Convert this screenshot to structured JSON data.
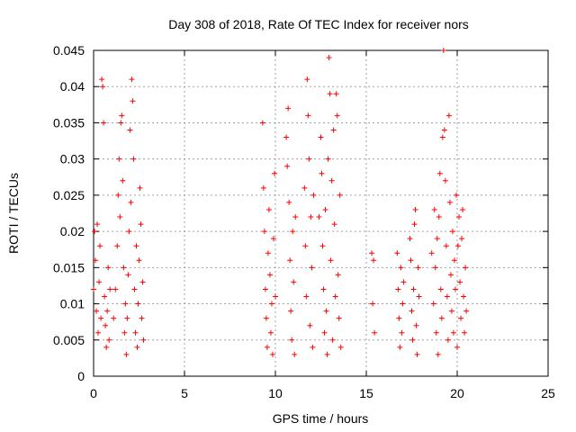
{
  "chart_data": {
    "type": "scatter",
    "title": "Day 308 of 2018, Rate Of TEC Index for receiver nors",
    "xlabel": "GPS time / hours",
    "ylabel": "ROTI / TECUs",
    "xlim": [
      0,
      25
    ],
    "ylim": [
      0,
      0.045
    ],
    "xticks": [
      0,
      5,
      10,
      15,
      20,
      25
    ],
    "yticks": [
      0,
      0.005,
      0.01,
      0.015,
      0.02,
      0.025,
      0.03,
      0.035,
      0.04,
      0.045
    ],
    "xtick_labels": [
      "0",
      "5",
      "10",
      "15",
      "20",
      "25"
    ],
    "ytick_labels": [
      "0",
      "0.005",
      "0.01",
      "0.015",
      "0.02",
      "0.025",
      "0.03",
      "0.035",
      "0.04",
      "0.045"
    ],
    "grid": true,
    "marker": "+",
    "color": "#ff0000",
    "series": [
      {
        "name": "ROTI",
        "points": [
          [
            0.0,
            0.012
          ],
          [
            0.05,
            0.02
          ],
          [
            0.1,
            0.016
          ],
          [
            0.15,
            0.009
          ],
          [
            0.2,
            0.021
          ],
          [
            0.25,
            0.006
          ],
          [
            0.3,
            0.013
          ],
          [
            0.35,
            0.018
          ],
          [
            0.4,
            0.008
          ],
          [
            0.45,
            0.041
          ],
          [
            0.5,
            0.04
          ],
          [
            0.55,
            0.035
          ],
          [
            0.6,
            0.011
          ],
          [
            0.65,
            0.007
          ],
          [
            0.7,
            0.004
          ],
          [
            0.75,
            0.009
          ],
          [
            0.8,
            0.015
          ],
          [
            0.85,
            0.005
          ],
          [
            0.9,
            0.012
          ],
          [
            1.1,
            0.008
          ],
          [
            1.2,
            0.012
          ],
          [
            1.3,
            0.018
          ],
          [
            1.35,
            0.025
          ],
          [
            1.4,
            0.03
          ],
          [
            1.45,
            0.022
          ],
          [
            1.5,
            0.035
          ],
          [
            1.55,
            0.036
          ],
          [
            1.6,
            0.027
          ],
          [
            1.65,
            0.015
          ],
          [
            1.7,
            0.006
          ],
          [
            1.75,
            0.01
          ],
          [
            1.8,
            0.003
          ],
          [
            1.85,
            0.008
          ],
          [
            1.9,
            0.014
          ],
          [
            1.95,
            0.02
          ],
          [
            2.0,
            0.034
          ],
          [
            2.05,
            0.024
          ],
          [
            2.1,
            0.041
          ],
          [
            2.15,
            0.038
          ],
          [
            2.2,
            0.03
          ],
          [
            2.25,
            0.012
          ],
          [
            2.3,
            0.006
          ],
          [
            2.35,
            0.018
          ],
          [
            2.4,
            0.004
          ],
          [
            2.45,
            0.01
          ],
          [
            2.5,
            0.016
          ],
          [
            2.55,
            0.026
          ],
          [
            2.6,
            0.021
          ],
          [
            2.65,
            0.008
          ],
          [
            2.7,
            0.013
          ],
          [
            2.75,
            0.005
          ],
          [
            9.3,
            0.035
          ],
          [
            9.35,
            0.026
          ],
          [
            9.4,
            0.02
          ],
          [
            9.45,
            0.012
          ],
          [
            9.5,
            0.008
          ],
          [
            9.55,
            0.004
          ],
          [
            9.6,
            0.017
          ],
          [
            9.65,
            0.023
          ],
          [
            9.7,
            0.014
          ],
          [
            9.75,
            0.006
          ],
          [
            9.8,
            0.01
          ],
          [
            9.85,
            0.003
          ],
          [
            9.9,
            0.019
          ],
          [
            9.95,
            0.028
          ],
          [
            10.0,
            0.011
          ],
          [
            10.6,
            0.033
          ],
          [
            10.65,
            0.029
          ],
          [
            10.7,
            0.037
          ],
          [
            10.75,
            0.024
          ],
          [
            10.8,
            0.016
          ],
          [
            10.85,
            0.009
          ],
          [
            10.9,
            0.005
          ],
          [
            10.95,
            0.02
          ],
          [
            11.0,
            0.013
          ],
          [
            11.05,
            0.003
          ],
          [
            11.1,
            0.022
          ],
          [
            11.6,
            0.026
          ],
          [
            11.65,
            0.018
          ],
          [
            11.7,
            0.011
          ],
          [
            11.75,
            0.041
          ],
          [
            11.8,
            0.036
          ],
          [
            11.85,
            0.03
          ],
          [
            11.9,
            0.007
          ],
          [
            11.95,
            0.022
          ],
          [
            12.0,
            0.015
          ],
          [
            12.05,
            0.004
          ],
          [
            12.1,
            0.025
          ],
          [
            12.4,
            0.022
          ],
          [
            12.5,
            0.033
          ],
          [
            12.55,
            0.028
          ],
          [
            12.6,
            0.018
          ],
          [
            12.65,
            0.012
          ],
          [
            12.7,
            0.006
          ],
          [
            12.75,
            0.023
          ],
          [
            12.8,
            0.009
          ],
          [
            12.85,
            0.003
          ],
          [
            12.9,
            0.03
          ],
          [
            12.95,
            0.044
          ],
          [
            13.0,
            0.039
          ],
          [
            13.05,
            0.016
          ],
          [
            13.1,
            0.027
          ],
          [
            13.15,
            0.005
          ],
          [
            13.2,
            0.034
          ],
          [
            13.25,
            0.021
          ],
          [
            13.3,
            0.011
          ],
          [
            13.35,
            0.039
          ],
          [
            13.4,
            0.036
          ],
          [
            13.45,
            0.014
          ],
          [
            13.5,
            0.008
          ],
          [
            13.55,
            0.025
          ],
          [
            13.6,
            0.004
          ],
          [
            15.3,
            0.017
          ],
          [
            15.35,
            0.01
          ],
          [
            15.4,
            0.016
          ],
          [
            15.45,
            0.006
          ],
          [
            16.7,
            0.017
          ],
          [
            16.75,
            0.012
          ],
          [
            16.8,
            0.008
          ],
          [
            16.85,
            0.004
          ],
          [
            16.9,
            0.015
          ],
          [
            16.95,
            0.006
          ],
          [
            17.0,
            0.01
          ],
          [
            17.05,
            0.013
          ],
          [
            17.4,
            0.019
          ],
          [
            17.45,
            0.016
          ],
          [
            17.5,
            0.009
          ],
          [
            17.55,
            0.005
          ],
          [
            17.6,
            0.012
          ],
          [
            17.65,
            0.021
          ],
          [
            17.7,
            0.023
          ],
          [
            17.75,
            0.007
          ],
          [
            17.8,
            0.003
          ],
          [
            17.85,
            0.015
          ],
          [
            17.9,
            0.011
          ],
          [
            18.6,
            0.017
          ],
          [
            18.7,
            0.01
          ],
          [
            18.75,
            0.023
          ],
          [
            18.8,
            0.015
          ],
          [
            18.85,
            0.006
          ],
          [
            18.9,
            0.019
          ],
          [
            18.95,
            0.003
          ],
          [
            19.0,
            0.022
          ],
          [
            19.05,
            0.028
          ],
          [
            19.1,
            0.012
          ],
          [
            19.15,
            0.008
          ],
          [
            19.2,
            0.033
          ],
          [
            19.25,
            0.045
          ],
          [
            19.3,
            0.034
          ],
          [
            19.35,
            0.027
          ],
          [
            19.4,
            0.018
          ],
          [
            19.45,
            0.011
          ],
          [
            19.5,
            0.005
          ],
          [
            19.55,
            0.036
          ],
          [
            19.6,
            0.024
          ],
          [
            19.65,
            0.014
          ],
          [
            19.7,
            0.009
          ],
          [
            19.75,
            0.02
          ],
          [
            19.8,
            0.006
          ],
          [
            19.85,
            0.016
          ],
          [
            19.9,
            0.012
          ],
          [
            19.95,
            0.025
          ],
          [
            20.0,
            0.004
          ],
          [
            20.05,
            0.018
          ],
          [
            20.1,
            0.022
          ],
          [
            20.15,
            0.013
          ],
          [
            20.2,
            0.008
          ],
          [
            20.25,
            0.019
          ],
          [
            20.3,
            0.023
          ],
          [
            20.35,
            0.011
          ],
          [
            20.4,
            0.006
          ],
          [
            20.45,
            0.015
          ],
          [
            20.5,
            0.009
          ]
        ]
      }
    ]
  }
}
